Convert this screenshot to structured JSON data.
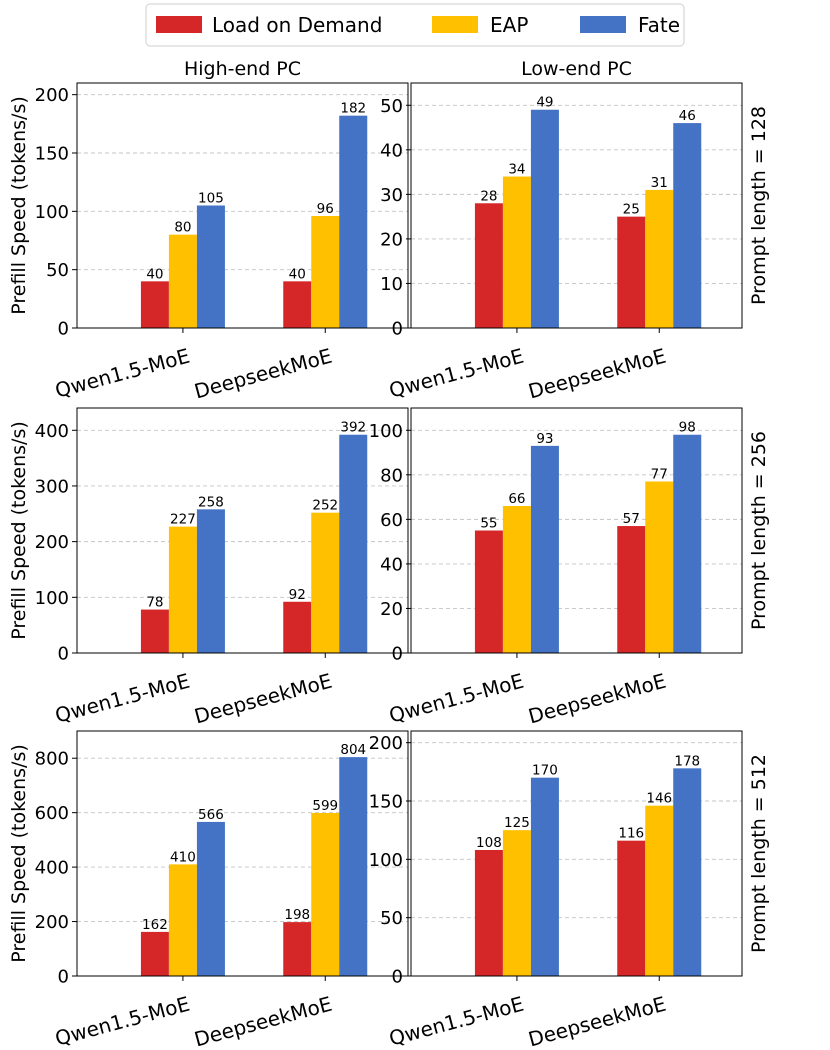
{
  "legend": {
    "entries": [
      {
        "label": "Load on Demand",
        "color": "#d62728"
      },
      {
        "label": "EAP",
        "color": "#ffc000"
      },
      {
        "label": "Fate",
        "color": "#4472c4"
      }
    ]
  },
  "columns": [
    "High-end PC",
    "Low-end PC"
  ],
  "rows": [
    "Prompt length = 128",
    "Prompt length = 256",
    "Prompt length = 512"
  ],
  "ylabel": "Prefill Speed (tokens/s)",
  "chart_data": [
    {
      "type": "bar",
      "title": "High-end PC",
      "row_label": "",
      "ylabel": "Prefill Speed (tokens/s)",
      "categories": [
        "Qwen1.5-MoE",
        "DeepseekMoE"
      ],
      "ylim": [
        0,
        210
      ],
      "yticks": [
        0,
        50,
        100,
        150,
        200
      ],
      "series": [
        {
          "name": "Load on Demand",
          "values": [
            40,
            40
          ]
        },
        {
          "name": "EAP",
          "values": [
            80,
            96
          ]
        },
        {
          "name": "Fate",
          "values": [
            105,
            182
          ]
        }
      ]
    },
    {
      "type": "bar",
      "title": "Low-end PC",
      "row_label": "Prompt length = 128",
      "ylabel": "",
      "categories": [
        "Qwen1.5-MoE",
        "DeepseekMoE"
      ],
      "ylim": [
        0,
        55
      ],
      "yticks": [
        0,
        10,
        20,
        30,
        40,
        50
      ],
      "series": [
        {
          "name": "Load on Demand",
          "values": [
            28,
            25
          ]
        },
        {
          "name": "EAP",
          "values": [
            34,
            31
          ]
        },
        {
          "name": "Fate",
          "values": [
            49,
            46
          ]
        }
      ]
    },
    {
      "type": "bar",
      "title": "",
      "row_label": "",
      "ylabel": "Prefill Speed (tokens/s)",
      "categories": [
        "Qwen1.5-MoE",
        "DeepseekMoE"
      ],
      "ylim": [
        0,
        440
      ],
      "yticks": [
        0,
        100,
        200,
        300,
        400
      ],
      "series": [
        {
          "name": "Load on Demand",
          "values": [
            78,
            92
          ]
        },
        {
          "name": "EAP",
          "values": [
            227,
            252
          ]
        },
        {
          "name": "Fate",
          "values": [
            258,
            392
          ]
        }
      ]
    },
    {
      "type": "bar",
      "title": "",
      "row_label": "Prompt length = 256",
      "ylabel": "",
      "categories": [
        "Qwen1.5-MoE",
        "DeepseekMoE"
      ],
      "ylim": [
        0,
        110
      ],
      "yticks": [
        0,
        20,
        40,
        60,
        80,
        100
      ],
      "series": [
        {
          "name": "Load on Demand",
          "values": [
            55,
            57
          ]
        },
        {
          "name": "EAP",
          "values": [
            66,
            77
          ]
        },
        {
          "name": "Fate",
          "values": [
            93,
            98
          ]
        }
      ]
    },
    {
      "type": "bar",
      "title": "",
      "row_label": "",
      "ylabel": "Prefill Speed (tokens/s)",
      "categories": [
        "Qwen1.5-MoE",
        "DeepseekMoE"
      ],
      "ylim": [
        0,
        900
      ],
      "yticks": [
        0,
        200,
        400,
        600,
        800
      ],
      "series": [
        {
          "name": "Load on Demand",
          "values": [
            162,
            198
          ]
        },
        {
          "name": "EAP",
          "values": [
            410,
            599
          ]
        },
        {
          "name": "Fate",
          "values": [
            566,
            804
          ]
        }
      ]
    },
    {
      "type": "bar",
      "title": "",
      "row_label": "Prompt length = 512",
      "ylabel": "",
      "categories": [
        "Qwen1.5-MoE",
        "DeepseekMoE"
      ],
      "ylim": [
        0,
        210
      ],
      "yticks": [
        0,
        50,
        100,
        150,
        200
      ],
      "series": [
        {
          "name": "Load on Demand",
          "values": [
            108,
            116
          ]
        },
        {
          "name": "EAP",
          "values": [
            125,
            146
          ]
        },
        {
          "name": "Fate",
          "values": [
            170,
            178
          ]
        }
      ]
    }
  ]
}
